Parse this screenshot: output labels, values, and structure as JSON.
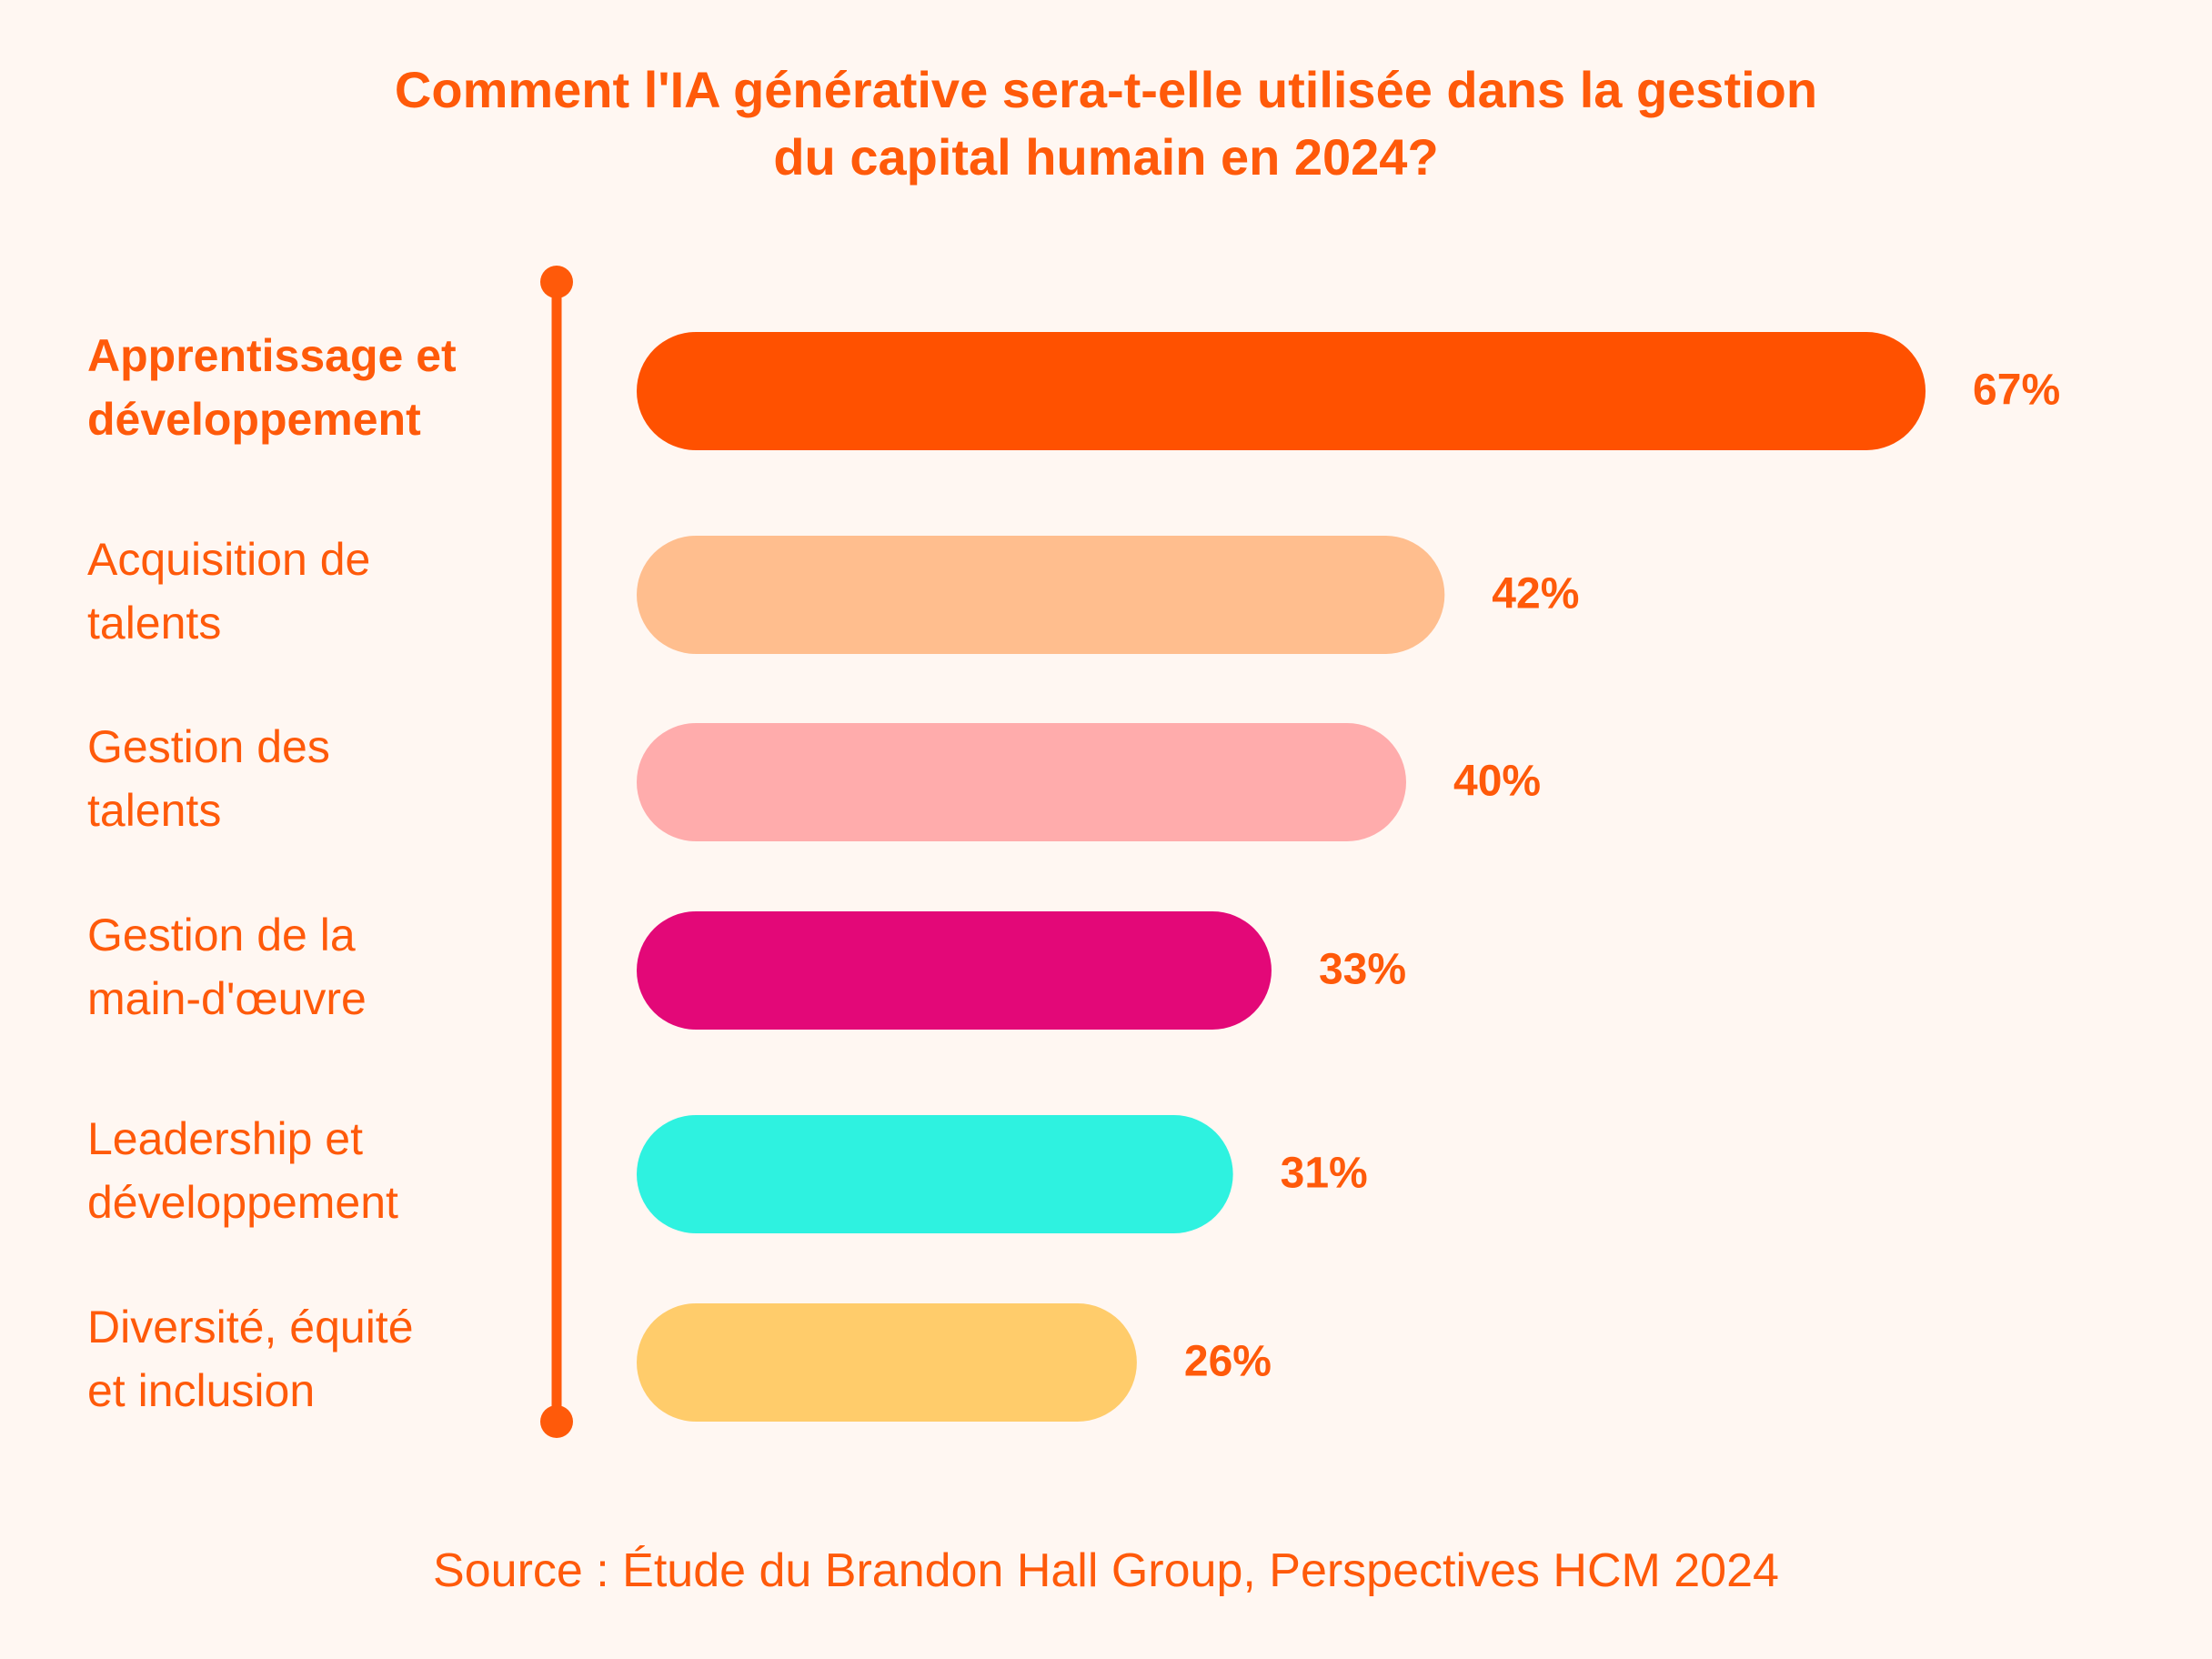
{
  "title": {
    "line1": "Comment l'IA générative sera-t-elle utilisée dans la gestion",
    "line2": "du capital humain en 2024?"
  },
  "chart_data": {
    "type": "bar",
    "orientation": "horizontal",
    "categories": [
      [
        "Apprentissage et",
        "développement"
      ],
      [
        "Acquisition de",
        "talents"
      ],
      [
        "Gestion des",
        "talents"
      ],
      [
        "Gestion de la",
        "main-d'œuvre"
      ],
      [
        "Leadership et",
        "développement"
      ],
      [
        "Diversité, équité",
        "et inclusion"
      ]
    ],
    "values": [
      67,
      42,
      40,
      33,
      31,
      26
    ],
    "value_labels": [
      "67%",
      "42%",
      "40%",
      "33%",
      "31%",
      "26%"
    ],
    "unit": "%",
    "colors": [
      "#ff5100",
      "#ffbe8e",
      "#ffacac",
      "#e30878",
      "#2ef2e0",
      "#ffcc6b"
    ],
    "highlight_index": 0,
    "label_color": "#ff5a0a",
    "axis_color": "#ff5a0a",
    "grid": false,
    "legend": false
  },
  "source": "Source : Étude du Brandon Hall Group, Perspectives HCM 2024"
}
